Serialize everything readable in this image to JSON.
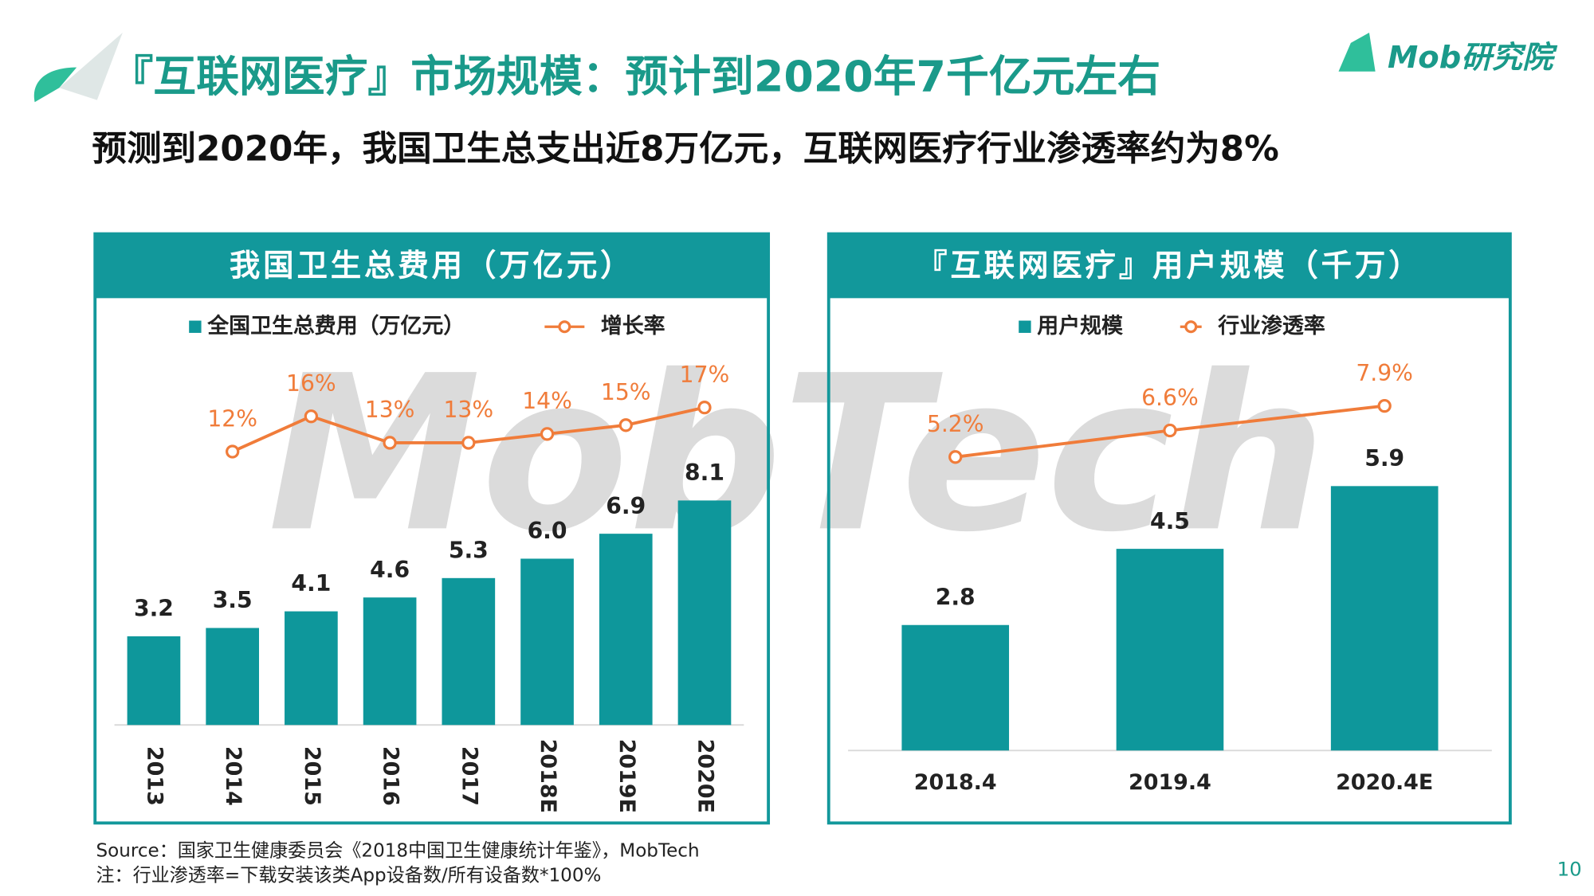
{
  "header": {
    "title": "『互联网医疗』市场规模：预计到2020年7千亿元左右",
    "subtitle": "预测到2020年，我国卫生总支出近8万亿元，互联网医疗行业渗透率约为8%",
    "logo": "Mob研究院",
    "watermark": "MobTech"
  },
  "chart_data": [
    {
      "type": "bar",
      "title": "我国卫生总费用（万亿元）",
      "categories": [
        "2013",
        "2014",
        "2015",
        "2016",
        "2017",
        "2018E",
        "2019E",
        "2020E"
      ],
      "legend": "top",
      "ylim": [
        0,
        14
      ],
      "y2lim": [
        -19,
        25
      ],
      "series": [
        {
          "name": "全国卫生总费用（万亿元）",
          "color": "#0e979b",
          "values": [
            3.2,
            3.5,
            4.1,
            4.6,
            5.3,
            6.0,
            6.9,
            8.1
          ],
          "value_labels": [
            "3.2",
            "3.5",
            "4.1",
            "4.6",
            "5.3",
            "6.0",
            "6.9",
            "8.1"
          ]
        },
        {
          "name": "增长率",
          "color": "#f07c3a",
          "type": "line",
          "axis": "y2",
          "values": [
            null,
            12,
            16,
            13,
            13,
            14,
            15,
            17
          ],
          "value_labels": [
            null,
            "12%",
            "16%",
            "13%",
            "13%",
            "14%",
            "15%",
            "17%"
          ]
        }
      ]
    },
    {
      "type": "bar",
      "title": "『互联网医疗』用户规模（千万）",
      "categories": [
        "2018.4",
        "2019.4",
        "2020.4E"
      ],
      "legend": "top",
      "ylim": [
        0,
        9
      ],
      "y2lim": [
        -10.3,
        11
      ],
      "series": [
        {
          "name": "用户规模",
          "color": "#0e979b",
          "values": [
            2.8,
            4.5,
            5.9
          ]
        },
        {
          "name": "行业渗透率",
          "color": "#f07c3a",
          "type": "line",
          "axis": "y2",
          "values": [
            5.2,
            6.6,
            7.9
          ],
          "value_labels": [
            "5.2%",
            "6.6%",
            "7.9%"
          ]
        }
      ]
    }
  ],
  "footer": {
    "source": "Source：国家卫生健康委员会《2018中国卫生健康统计年鉴》，MobTech",
    "note": "注：行业渗透率=下载安装该类App设备数/所有设备数*100%",
    "page": "10"
  }
}
